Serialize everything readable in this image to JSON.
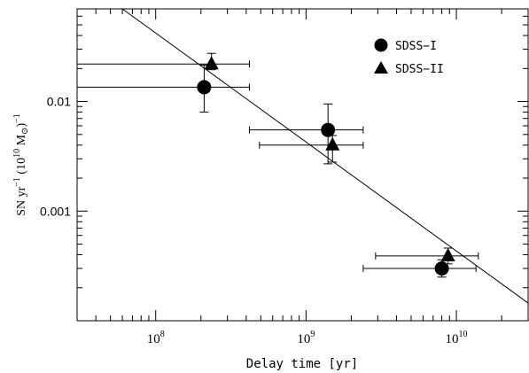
{
  "chart_data": {
    "type": "scatter",
    "xscale": "log",
    "yscale": "log",
    "xlim": [
      30000000,
      30000000000
    ],
    "ylim": [
      0.0001,
      0.07
    ],
    "xlabel": "Delay time [yr]",
    "ylabel": {
      "base": "SN yr",
      "exp1": "−1",
      "mid": " (10",
      "exp2": "10",
      "unit": " M",
      "sub": "⊙",
      "close": ")",
      "exp3": "−1"
    },
    "x_ticks": [
      {
        "value": 100000000,
        "base": "10",
        "exp": "8"
      },
      {
        "value": 1000000000,
        "base": "10",
        "exp": "9"
      },
      {
        "value": 10000000000,
        "base": "10",
        "exp": "10"
      }
    ],
    "y_ticks": [
      {
        "value": 0.01,
        "label": "0.01"
      },
      {
        "value": 0.001,
        "label": "0.001"
      }
    ],
    "legend": {
      "position": "top-right",
      "entries": [
        {
          "label": "SDSS−I",
          "marker": "circle"
        },
        {
          "label": "SDSS−II",
          "marker": "triangle"
        }
      ]
    },
    "series": [
      {
        "name": "SDSS−I",
        "marker": "circle",
        "points": [
          {
            "x": 210000000,
            "y": 0.0135,
            "xlo": 1000000,
            "xhi": 420000000,
            "ylo": 0.008,
            "yhi": 0.0215
          },
          {
            "x": 1400000000,
            "y": 0.0055,
            "xlo": 420000000,
            "xhi": 2400000000,
            "ylo": 0.0027,
            "yhi": 0.0095
          },
          {
            "x": 8000000000,
            "y": 0.0003,
            "xlo": 2400000000,
            "xhi": 13500000000,
            "ylo": 0.00025,
            "yhi": 0.00036
          }
        ]
      },
      {
        "name": "SDSS−II",
        "marker": "triangle",
        "points": [
          {
            "x": 235000000,
            "y": 0.022,
            "xlo": 1000000,
            "xhi": 420000000,
            "ylo": 0.0195,
            "yhi": 0.0275
          },
          {
            "x": 1500000000,
            "y": 0.004,
            "xlo": 490000000,
            "xhi": 2400000000,
            "ylo": 0.0028,
            "yhi": 0.0049
          },
          {
            "x": 8800000000,
            "y": 0.00039,
            "xlo": 2900000000,
            "xhi": 14000000000,
            "ylo": 0.00033,
            "yhi": 0.00046
          }
        ]
      }
    ],
    "fit_line": {
      "x1": 60000000,
      "y1": 0.07,
      "x2": 30000000000,
      "y2": 0.000145
    }
  }
}
